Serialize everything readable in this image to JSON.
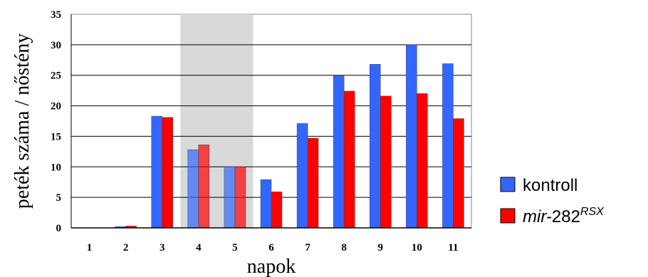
{
  "chart_data": {
    "type": "bar",
    "categories": [
      "1",
      "2",
      "3",
      "4",
      "5",
      "6",
      "7",
      "8",
      "9",
      "10",
      "11"
    ],
    "series": [
      {
        "name": "kontroll",
        "color": "#3366ff",
        "values": [
          0,
          0.2,
          18.3,
          12.8,
          10.0,
          7.9,
          17.1,
          24.9,
          26.8,
          30.0,
          26.9
        ]
      },
      {
        "name_parts": [
          "mir-",
          "282",
          "RSX"
        ],
        "color": "#ff0000",
        "values": [
          0,
          0.3,
          18.1,
          13.6,
          10.0,
          5.9,
          14.7,
          22.4,
          21.6,
          22.0,
          17.9
        ]
      }
    ],
    "xlabel": "napok",
    "ylabel": "peték száma / nőstény",
    "ylim": [
      0,
      35
    ],
    "yticks": [
      "0",
      "5",
      "10",
      "15",
      "20",
      "25",
      "30",
      "35"
    ],
    "highlight_categories": [
      "4",
      "5"
    ],
    "highlight_color": "#d9d9d9",
    "grid": "horizontal",
    "legend_position": "right"
  }
}
